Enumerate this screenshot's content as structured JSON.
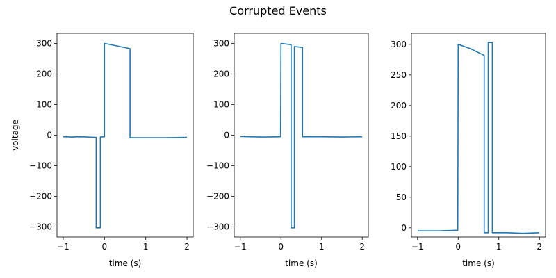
{
  "figure": {
    "title": "Corrupted Events",
    "line_color": "#1f77b4"
  },
  "chart_data": [
    {
      "type": "line",
      "title": "",
      "xlabel": "time (s)",
      "ylabel": "voltage",
      "xlim": [
        -1.15,
        2.15
      ],
      "ylim": [
        -333,
        333
      ],
      "xticks": [
        -1,
        0,
        1,
        2
      ],
      "xtick_labels": [
        "−1",
        "0",
        "1",
        "2"
      ],
      "yticks": [
        -300,
        -200,
        -100,
        0,
        100,
        200,
        300
      ],
      "ytick_labels": [
        "−300",
        "−200",
        "−100",
        "0",
        "100",
        "200",
        "300"
      ],
      "grid": false,
      "series": [
        {
          "x": [
            -1,
            -0.8,
            -0.6,
            -0.4,
            -0.22,
            -0.2,
            -0.2,
            -0.1,
            -0.1,
            0,
            0,
            0.3,
            0.62,
            0.62,
            1,
            1.5,
            2
          ],
          "y": [
            -5,
            -6,
            -5,
            -6,
            -7,
            -7,
            -303,
            -303,
            -6,
            -5,
            300,
            292,
            283,
            -8,
            -8,
            -8,
            -7
          ]
        }
      ]
    },
    {
      "type": "line",
      "title": "",
      "xlabel": "time (s)",
      "ylabel": "",
      "xlim": [
        -1.15,
        2.15
      ],
      "ylim": [
        -333,
        333
      ],
      "xticks": [
        -1,
        0,
        1,
        2
      ],
      "xtick_labels": [
        "−1",
        "0",
        "1",
        "2"
      ],
      "yticks": [
        -300,
        -200,
        -100,
        0,
        100,
        200,
        300
      ],
      "ytick_labels": [
        "−300",
        "−200",
        "−100",
        "0",
        "100",
        "200",
        "300"
      ],
      "grid": false,
      "series": [
        {
          "x": [
            -1,
            -0.5,
            -0.01,
            0,
            0.25,
            0.25,
            0.33,
            0.33,
            0.53,
            0.53,
            1,
            1.5,
            2
          ],
          "y": [
            -4,
            -6,
            -5,
            300,
            296,
            -303,
            -303,
            290,
            287,
            -5,
            -5,
            -6,
            -5
          ]
        }
      ]
    },
    {
      "type": "line",
      "title": "",
      "xlabel": "time (s)",
      "ylabel": "",
      "xlim": [
        -1.15,
        2.15
      ],
      "ylim": [
        -15,
        318
      ],
      "xticks": [
        -1,
        0,
        1,
        2
      ],
      "xtick_labels": [
        "−1",
        "0",
        "1",
        "2"
      ],
      "yticks": [
        0,
        50,
        100,
        150,
        200,
        250,
        300
      ],
      "ytick_labels": [
        "0",
        "50",
        "100",
        "150",
        "200",
        "250",
        "300"
      ],
      "grid": false,
      "series": [
        {
          "x": [
            -1,
            -0.5,
            -0.01,
            0,
            0.3,
            0.64,
            0.64,
            0.74,
            0.74,
            0.84,
            0.84,
            1.2,
            1.6,
            2
          ],
          "y": [
            -5,
            -5,
            -4,
            300,
            293,
            282,
            -8,
            -8,
            303,
            303,
            -8,
            -8,
            -9,
            -8
          ]
        }
      ]
    }
  ]
}
